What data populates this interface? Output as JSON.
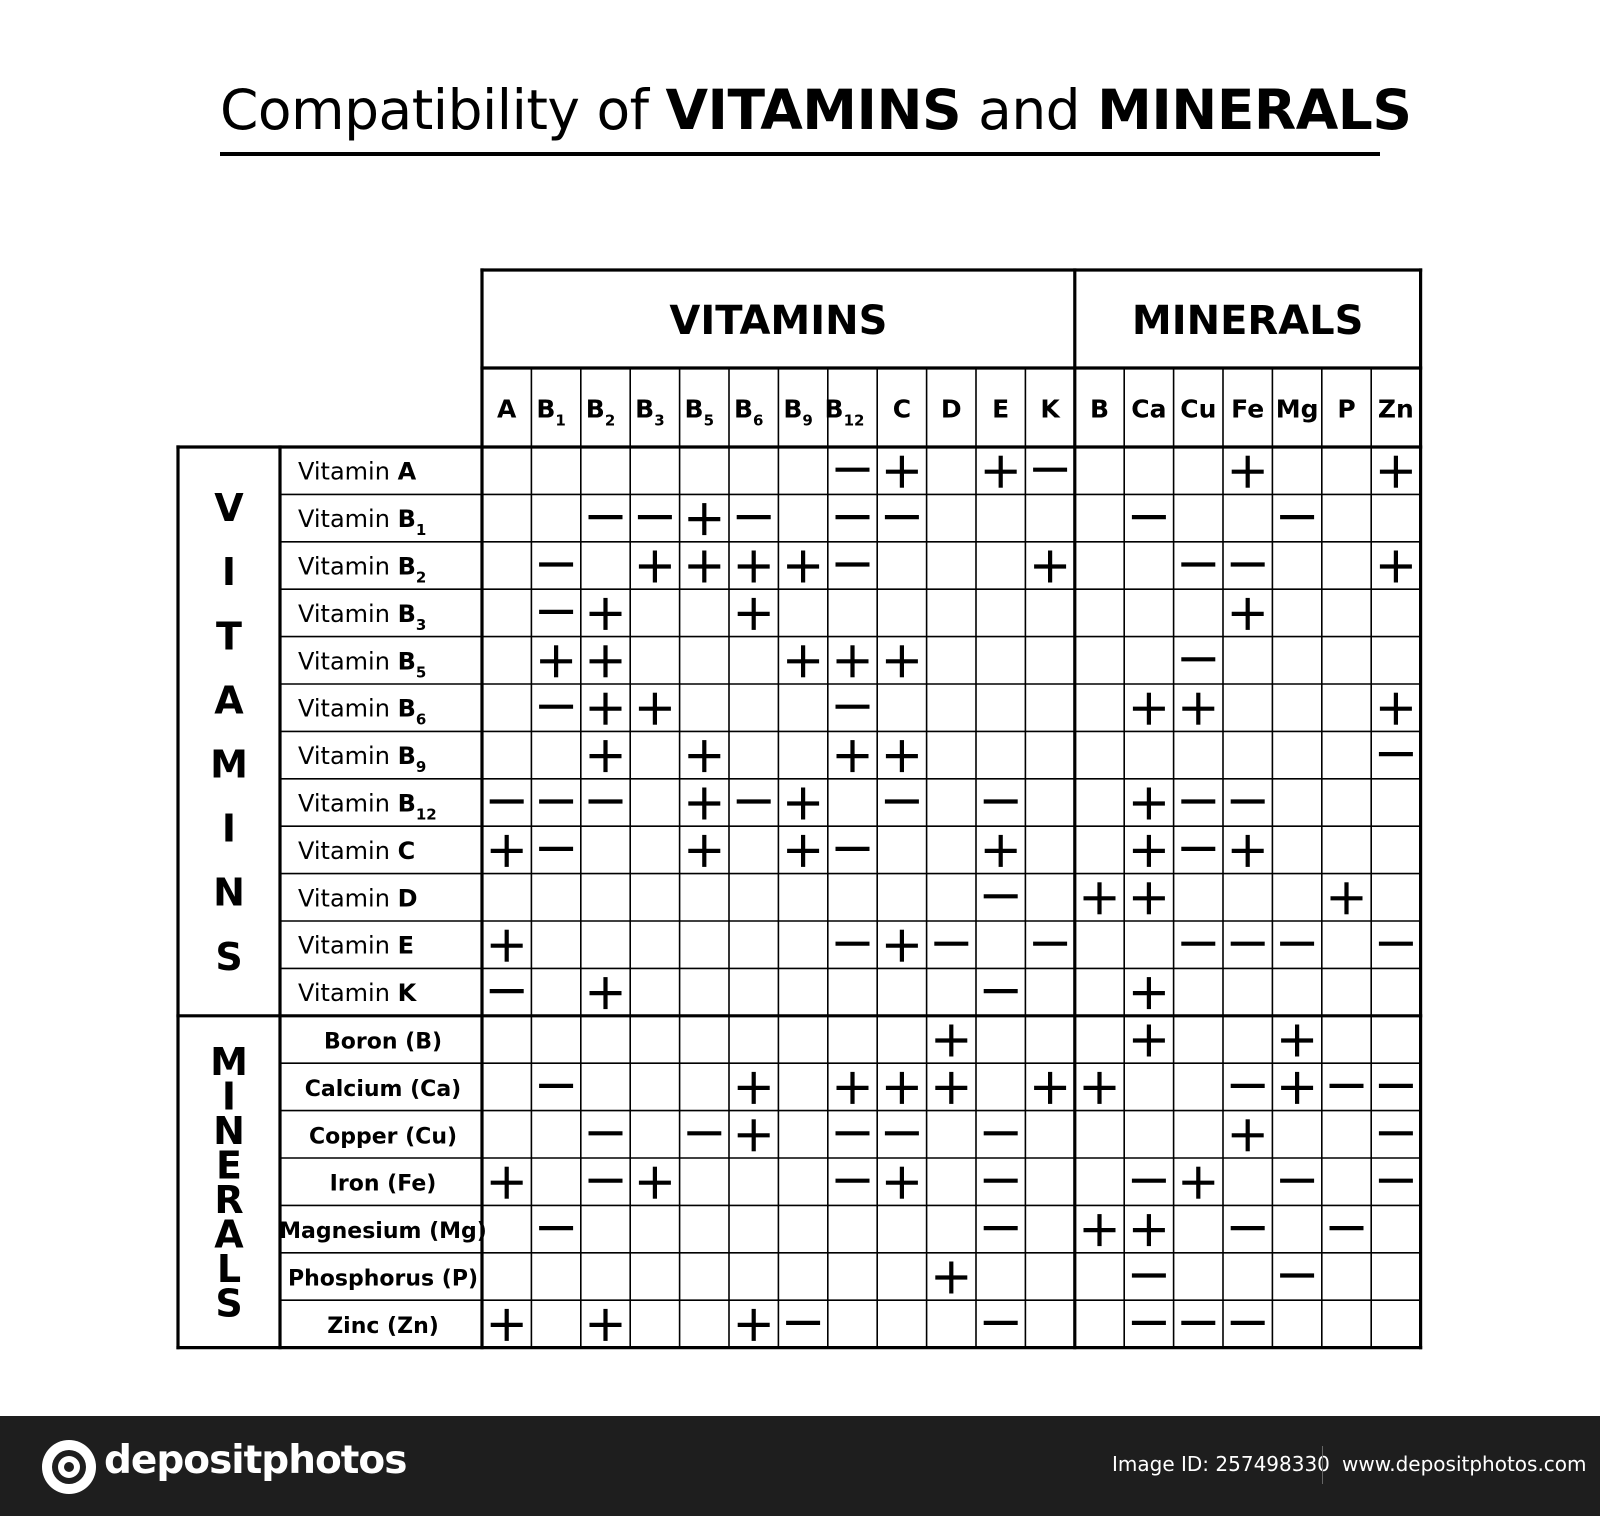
{
  "title": {
    "part1": "Compatibility of ",
    "bold1": "VITAMINS",
    "part2": " and ",
    "bold2": "MINERALS"
  },
  "chart_data": {
    "type": "table",
    "column_groups": [
      {
        "label": "VITAMINS",
        "span": 12
      },
      {
        "label": "MINERALS",
        "span": 7
      }
    ],
    "row_groups": [
      {
        "label": "VITAMINS",
        "span": 12
      },
      {
        "label": "MINERALS",
        "span": 7
      }
    ],
    "columns": [
      {
        "base": "A",
        "sub": ""
      },
      {
        "base": "B",
        "sub": "1"
      },
      {
        "base": "B",
        "sub": "2"
      },
      {
        "base": "B",
        "sub": "3"
      },
      {
        "base": "B",
        "sub": "5"
      },
      {
        "base": "B",
        "sub": "6"
      },
      {
        "base": "B",
        "sub": "9"
      },
      {
        "base": "B",
        "sub": "12"
      },
      {
        "base": "C",
        "sub": ""
      },
      {
        "base": "D",
        "sub": ""
      },
      {
        "base": "E",
        "sub": ""
      },
      {
        "base": "K",
        "sub": ""
      },
      {
        "base": "B",
        "sub": ""
      },
      {
        "base": "Ca",
        "sub": ""
      },
      {
        "base": "Cu",
        "sub": ""
      },
      {
        "base": "Fe",
        "sub": ""
      },
      {
        "base": "Mg",
        "sub": ""
      },
      {
        "base": "P",
        "sub": ""
      },
      {
        "base": "Zn",
        "sub": ""
      }
    ],
    "rows": [
      {
        "prefix": "Vitamin ",
        "bold": "A",
        "sub": "",
        "values": [
          "",
          "",
          "",
          "",
          "",
          "",
          "",
          "-",
          "+",
          "",
          "+",
          "-",
          "",
          "",
          "",
          "+",
          "",
          "",
          "+"
        ]
      },
      {
        "prefix": "Vitamin ",
        "bold": "B",
        "sub": "1",
        "values": [
          "",
          "",
          "-",
          "-",
          "+",
          "-",
          "",
          "-",
          "-",
          "",
          "",
          "",
          "",
          "-",
          "",
          "",
          "-",
          "",
          ""
        ]
      },
      {
        "prefix": "Vitamin ",
        "bold": "B",
        "sub": "2",
        "values": [
          "",
          "-",
          "",
          "+",
          "+",
          "+",
          "+",
          "-",
          "",
          "",
          "",
          "+",
          "",
          "",
          "-",
          "-",
          "",
          "",
          "+"
        ]
      },
      {
        "prefix": "Vitamin ",
        "bold": "B",
        "sub": "3",
        "values": [
          "",
          "-",
          "+",
          "",
          "",
          "+",
          "",
          "",
          "",
          "",
          "",
          "",
          "",
          "",
          "",
          "+",
          "",
          "",
          ""
        ]
      },
      {
        "prefix": "Vitamin ",
        "bold": "B",
        "sub": "5",
        "values": [
          "",
          "+",
          "+",
          "",
          "",
          "",
          "+",
          "+",
          "+",
          "",
          "",
          "",
          "",
          "",
          "-",
          "",
          "",
          "",
          ""
        ]
      },
      {
        "prefix": "Vitamin ",
        "bold": "B",
        "sub": "6",
        "values": [
          "",
          "-",
          "+",
          "+",
          "",
          "",
          "",
          "-",
          "",
          "",
          "",
          "",
          "",
          "+",
          "+",
          "",
          "",
          "",
          "+"
        ]
      },
      {
        "prefix": "Vitamin ",
        "bold": "B",
        "sub": "9",
        "values": [
          "",
          "",
          "+",
          "",
          "+",
          "",
          "",
          "+",
          "+",
          "",
          "",
          "",
          "",
          "",
          "",
          "",
          "",
          "",
          "-"
        ]
      },
      {
        "prefix": "Vitamin ",
        "bold": "B",
        "sub": "12",
        "values": [
          "-",
          "-",
          "-",
          "",
          "+",
          "-",
          "+",
          "",
          "-",
          "",
          "-",
          "",
          "",
          "+",
          "-",
          "-",
          "",
          "",
          ""
        ]
      },
      {
        "prefix": "Vitamin ",
        "bold": "C",
        "sub": "",
        "values": [
          "+",
          "-",
          "",
          "",
          "+",
          "",
          "+",
          "-",
          "",
          "",
          "+",
          "",
          "",
          "+",
          "-",
          "+",
          "",
          "",
          ""
        ]
      },
      {
        "prefix": "Vitamin ",
        "bold": "D",
        "sub": "",
        "values": [
          "",
          "",
          "",
          "",
          "",
          "",
          "",
          "",
          "",
          "",
          "-",
          "",
          "+",
          "+",
          "",
          "",
          "",
          "+",
          ""
        ]
      },
      {
        "prefix": "Vitamin ",
        "bold": "E",
        "sub": "",
        "values": [
          "+",
          "",
          "",
          "",
          "",
          "",
          "",
          "-",
          "+",
          "-",
          "",
          "-",
          "",
          "",
          "-",
          "-",
          "-",
          "",
          "-"
        ]
      },
      {
        "prefix": "Vitamin ",
        "bold": "K",
        "sub": "",
        "values": [
          "-",
          "",
          "+",
          "",
          "",
          "",
          "",
          "",
          "",
          "",
          "-",
          "",
          "",
          "+",
          "",
          "",
          "",
          "",
          ""
        ]
      },
      {
        "prefix": "",
        "bold": "Boron  (B)",
        "sub": "",
        "values": [
          "",
          "",
          "",
          "",
          "",
          "",
          "",
          "",
          "",
          "+",
          "",
          "",
          "",
          "+",
          "",
          "",
          "+",
          "",
          ""
        ]
      },
      {
        "prefix": "",
        "bold": "Calcium  (Ca)",
        "sub": "",
        "values": [
          "",
          "-",
          "",
          "",
          "",
          "+",
          "",
          "+",
          "+",
          "+",
          "",
          "+",
          "+",
          "",
          "",
          "-",
          "+",
          "-",
          "-"
        ]
      },
      {
        "prefix": "",
        "bold": "Copper  (Cu)",
        "sub": "",
        "values": [
          "",
          "",
          "-",
          "",
          "-",
          "+",
          "",
          "-",
          "-",
          "",
          "-",
          "",
          "",
          "",
          "",
          "+",
          "",
          "",
          "-"
        ]
      },
      {
        "prefix": "",
        "bold": "Iron  (Fe)",
        "sub": "",
        "values": [
          "+",
          "",
          "-",
          "+",
          "",
          "",
          "",
          "-",
          "+",
          "",
          "-",
          "",
          "",
          "-",
          "+",
          "",
          "-",
          "",
          "-"
        ]
      },
      {
        "prefix": "",
        "bold": "Magnesium  (Mg)",
        "sub": "",
        "values": [
          "",
          "-",
          "",
          "",
          "",
          "",
          "",
          "",
          "",
          "",
          "-",
          "",
          "+",
          "+",
          "",
          "-",
          "",
          "-",
          ""
        ]
      },
      {
        "prefix": "",
        "bold": "Phosphorus  (P)",
        "sub": "",
        "values": [
          "",
          "",
          "",
          "",
          "",
          "",
          "",
          "",
          "",
          "+",
          "",
          "",
          "",
          "-",
          "",
          "",
          "-",
          "",
          ""
        ]
      },
      {
        "prefix": "",
        "bold": "Zinc  (Zn)",
        "sub": "",
        "values": [
          "+",
          "",
          "+",
          "",
          "",
          "+",
          "-",
          "",
          "",
          "",
          "-",
          "",
          "",
          "-",
          "-",
          "-",
          "",
          "",
          ""
        ]
      }
    ]
  },
  "footer": {
    "logo": "depositphotos",
    "image_id": "Image ID: 257498330",
    "site": "www.depositphotos.com",
    "logo_icon": "camera-lens-icon",
    "bg_color": "#1e1e1e"
  }
}
